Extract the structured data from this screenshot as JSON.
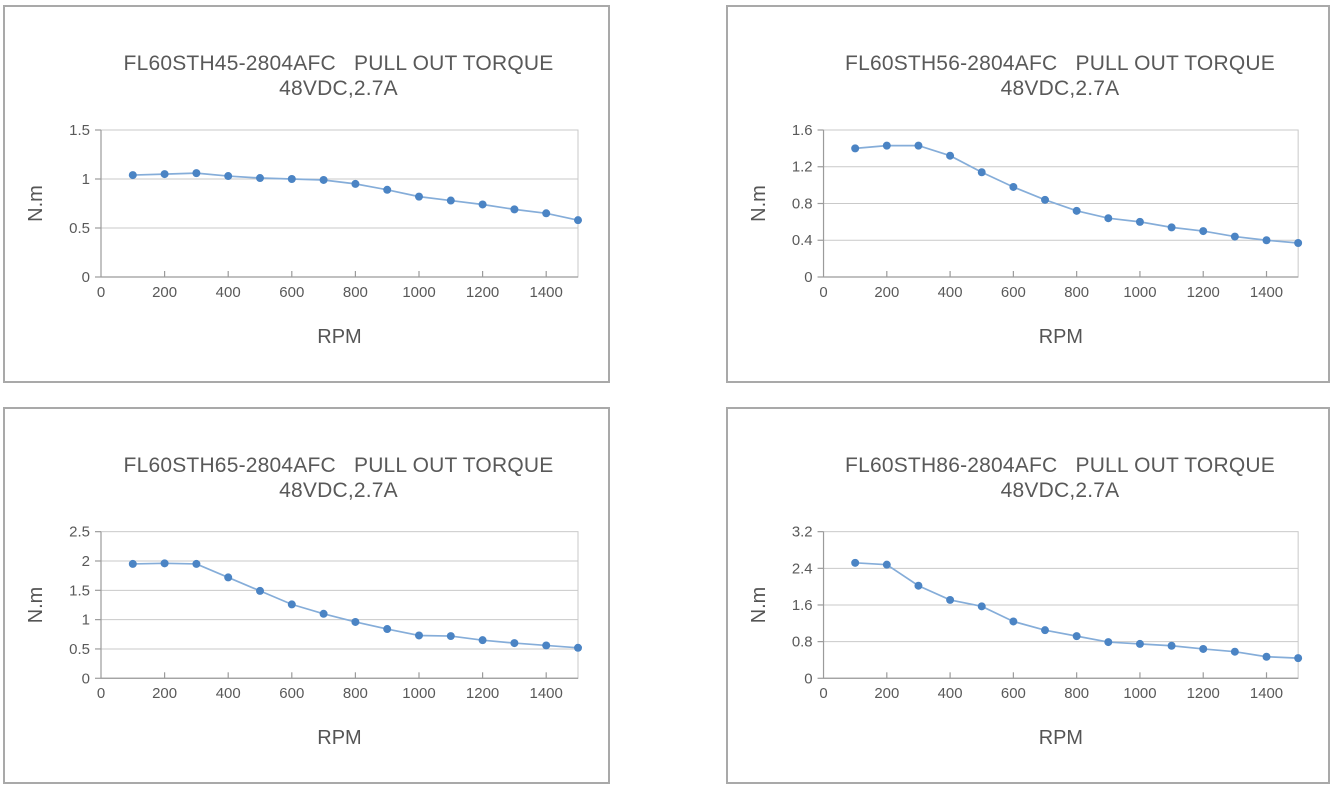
{
  "styles": {
    "marker_color": "#4b84c4",
    "line_color": "#85add9",
    "grid_color": "#c9c9c9",
    "axis_color": "#9b9b9b",
    "tick_label_color": "#595959",
    "axis_title_color": "#555555",
    "title_color": "#595959",
    "panel_border_color": "#a9a9a9"
  },
  "chart_data": [
    {
      "type": "line",
      "title": "FL60STH45-2804AFC   PULL OUT TORQUE",
      "subtitle": "48VDC,2.7A",
      "xlabel": "RPM",
      "ylabel": "N.m",
      "x": [
        100,
        200,
        300,
        400,
        500,
        600,
        700,
        800,
        900,
        1000,
        1100,
        1200,
        1300,
        1400,
        1500
      ],
      "values": [
        1.04,
        1.05,
        1.06,
        1.03,
        1.01,
        1.0,
        0.99,
        0.95,
        0.89,
        0.82,
        0.78,
        0.74,
        0.69,
        0.65,
        0.58
      ],
      "xlim": [
        0,
        1500
      ],
      "ylim": [
        0,
        1.5
      ],
      "xticks": [
        0,
        200,
        400,
        600,
        800,
        1000,
        1200,
        1400
      ],
      "yticks": [
        0,
        0.5,
        1,
        1.5
      ],
      "ytick_labels": [
        "0",
        "0.5",
        "1",
        "1.5"
      ],
      "grid": "horizontal",
      "legend": "none"
    },
    {
      "type": "line",
      "title": "FL60STH56-2804AFC   PULL OUT TORQUE",
      "subtitle": "48VDC,2.7A",
      "xlabel": "RPM",
      "ylabel": "N.m",
      "x": [
        100,
        200,
        300,
        400,
        500,
        600,
        700,
        800,
        900,
        1000,
        1100,
        1200,
        1300,
        1400,
        1500
      ],
      "values": [
        1.4,
        1.43,
        1.43,
        1.32,
        1.14,
        0.98,
        0.84,
        0.72,
        0.64,
        0.6,
        0.54,
        0.5,
        0.44,
        0.4,
        0.37
      ],
      "xlim": [
        0,
        1500
      ],
      "ylim": [
        0,
        1.6
      ],
      "xticks": [
        0,
        200,
        400,
        600,
        800,
        1000,
        1200,
        1400
      ],
      "yticks": [
        0,
        0.4,
        0.8,
        1.2,
        1.6
      ],
      "ytick_labels": [
        "0",
        "0.4",
        "0.8",
        "1.2",
        "1.6"
      ],
      "grid": "horizontal",
      "legend": "none"
    },
    {
      "type": "line",
      "title": "FL60STH65-2804AFC   PULL OUT TORQUE",
      "subtitle": "48VDC,2.7A",
      "xlabel": "RPM",
      "ylabel": "N.m",
      "x": [
        100,
        200,
        300,
        400,
        500,
        600,
        700,
        800,
        900,
        1000,
        1100,
        1200,
        1300,
        1400,
        1500
      ],
      "values": [
        1.95,
        1.96,
        1.95,
        1.72,
        1.49,
        1.26,
        1.1,
        0.96,
        0.84,
        0.73,
        0.72,
        0.65,
        0.6,
        0.56,
        0.52
      ],
      "xlim": [
        0,
        1500
      ],
      "ylim": [
        0,
        2.5
      ],
      "xticks": [
        0,
        200,
        400,
        600,
        800,
        1000,
        1200,
        1400
      ],
      "yticks": [
        0,
        0.5,
        1,
        1.5,
        2,
        2.5
      ],
      "ytick_labels": [
        "0",
        "0.5",
        "1",
        "1.5",
        "2",
        "2.5"
      ],
      "grid": "horizontal",
      "legend": "none"
    },
    {
      "type": "line",
      "title": "FL60STH86-2804AFC   PULL OUT TORQUE",
      "subtitle": "48VDC,2.7A",
      "xlabel": "RPM",
      "ylabel": "N.m",
      "x": [
        100,
        200,
        300,
        400,
        500,
        600,
        700,
        800,
        900,
        1000,
        1100,
        1200,
        1300,
        1400,
        1500
      ],
      "values": [
        2.52,
        2.48,
        2.02,
        1.71,
        1.57,
        1.24,
        1.05,
        0.92,
        0.79,
        0.75,
        0.71,
        0.64,
        0.58,
        0.47,
        0.44
      ],
      "xlim": [
        0,
        1500
      ],
      "ylim": [
        0,
        3.2
      ],
      "xticks": [
        0,
        200,
        400,
        600,
        800,
        1000,
        1200,
        1400
      ],
      "yticks": [
        0,
        0.8,
        1.6,
        2.4,
        3.2
      ],
      "ytick_labels": [
        "0",
        "0.8",
        "1.6",
        "2.4",
        "3.2"
      ],
      "grid": "horizontal",
      "legend": "none"
    }
  ]
}
